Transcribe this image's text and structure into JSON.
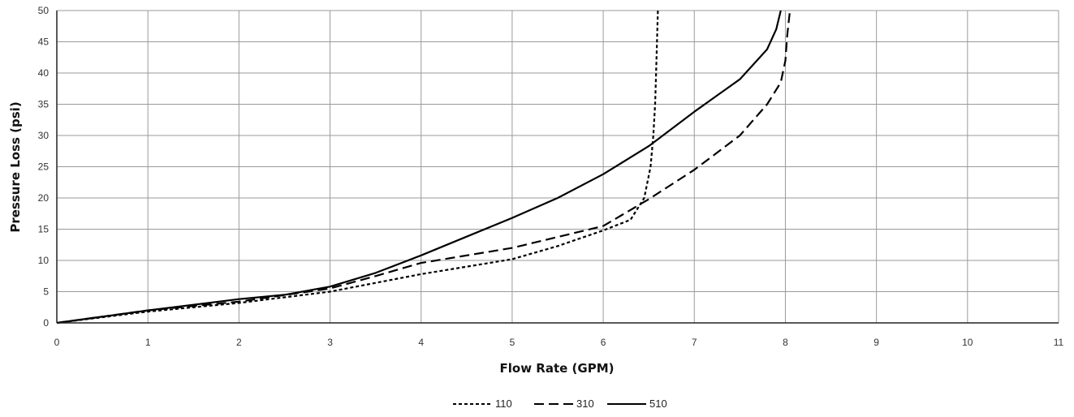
{
  "chart_data": {
    "type": "line",
    "title": "",
    "xlabel": "Flow Rate (GPM)",
    "ylabel": "Pressure Loss (psi)",
    "xlim": [
      0,
      11
    ],
    "ylim": [
      0,
      50
    ],
    "x_ticks": [
      "0",
      "1",
      "2",
      "3",
      "4",
      "5",
      "6",
      "7",
      "8",
      "9",
      "10",
      "11"
    ],
    "y_ticks": [
      "0",
      "5",
      "10",
      "15",
      "20",
      "25",
      "30",
      "35",
      "40",
      "45",
      "50"
    ],
    "grid": true,
    "legend_position": "bottom",
    "series": [
      {
        "name": "110",
        "line_style": "short-dash",
        "color": "#000000",
        "points": [
          [
            0,
            0
          ],
          [
            1,
            1.8
          ],
          [
            2,
            3.2
          ],
          [
            3,
            5.0
          ],
          [
            4,
            7.8
          ],
          [
            5,
            10.2
          ],
          [
            5.5,
            12.3
          ],
          [
            6,
            14.8
          ],
          [
            6.3,
            16.5
          ],
          [
            6.45,
            20
          ],
          [
            6.52,
            25
          ],
          [
            6.55,
            30
          ],
          [
            6.57,
            35
          ],
          [
            6.58,
            40
          ],
          [
            6.59,
            45
          ],
          [
            6.6,
            50
          ]
        ]
      },
      {
        "name": "310",
        "line_style": "long-dash",
        "color": "#000000",
        "points": [
          [
            0,
            0
          ],
          [
            1,
            2.0
          ],
          [
            2,
            3.4
          ],
          [
            3,
            5.5
          ],
          [
            3.5,
            7.5
          ],
          [
            4,
            9.6
          ],
          [
            5,
            12.0
          ],
          [
            6,
            15.5
          ],
          [
            6.5,
            19.8
          ],
          [
            7,
            24.5
          ],
          [
            7.5,
            30
          ],
          [
            7.8,
            35
          ],
          [
            7.95,
            38.5
          ],
          [
            8.0,
            42
          ],
          [
            8.02,
            46
          ],
          [
            8.05,
            50
          ]
        ]
      },
      {
        "name": "510",
        "line_style": "solid",
        "color": "#000000",
        "points": [
          [
            0,
            0
          ],
          [
            1,
            2.0
          ],
          [
            2,
            3.8
          ],
          [
            2.5,
            4.5
          ],
          [
            3,
            5.8
          ],
          [
            3.5,
            8.0
          ],
          [
            4,
            10.8
          ],
          [
            4.5,
            13.8
          ],
          [
            5,
            16.8
          ],
          [
            5.5,
            20.0
          ],
          [
            6,
            23.8
          ],
          [
            6.5,
            28.3
          ],
          [
            7,
            33.8
          ],
          [
            7.5,
            39.0
          ],
          [
            7.8,
            43.8
          ],
          [
            7.9,
            47.0
          ],
          [
            7.95,
            50
          ]
        ]
      }
    ]
  }
}
